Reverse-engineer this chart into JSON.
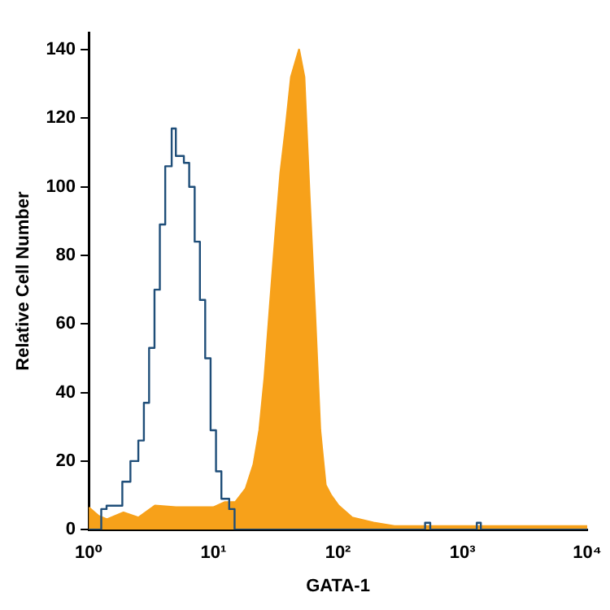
{
  "chart_data": {
    "type": "step",
    "xlabel": "GATA-1",
    "ylabel": "Relative Cell Number",
    "log": "x",
    "xlim": [
      1,
      10000
    ],
    "xticks": [
      {
        "value": 1,
        "label": "10⁰"
      },
      {
        "value": 10,
        "label": "10¹"
      },
      {
        "value": 100,
        "label": "10²"
      },
      {
        "value": 1000,
        "label": "10³"
      },
      {
        "value": 10000,
        "label": "10⁴"
      }
    ],
    "ylim": [
      0,
      145
    ],
    "yticks": [
      0,
      20,
      40,
      60,
      80,
      100,
      120,
      140
    ],
    "grid": false,
    "legend": false,
    "marker": "none",
    "series": [
      {
        "type": "area",
        "color": "#f7a11a",
        "x": [
          1,
          1.2,
          1.4,
          1.9,
          2.5,
          3.4,
          5,
          7.4,
          10,
          12.3,
          15,
          18.2,
          21,
          23.4,
          25.7,
          28.4,
          31.3,
          34.5,
          38,
          42,
          48.7,
          53.7,
          59,
          65.5,
          72,
          79.6,
          88,
          101,
          130,
          193,
          284,
          616,
          10000
        ],
        "values": [
          6.5,
          4,
          3,
          5,
          3.5,
          7,
          6.5,
          6.5,
          6.5,
          8,
          8,
          12,
          19,
          29,
          44,
          65,
          85,
          104,
          117,
          132,
          140,
          132,
          98,
          63,
          29,
          13,
          10,
          7,
          3.5,
          2,
          1,
          1,
          1
        ]
      },
      {
        "type": "step",
        "color": "#1f4e79",
        "x": [
          1,
          1.26,
          1.39,
          1.61,
          1.86,
          2.16,
          2.5,
          2.77,
          3.05,
          3.37,
          3.72,
          4.11,
          4.63,
          5,
          5.8,
          6.4,
          7.08,
          7.8,
          8.6,
          9.5,
          10.5,
          11.6,
          13.4,
          14.8,
          450,
          500,
          550,
          1200,
          1300,
          1400,
          10000
        ],
        "values": [
          0,
          6,
          7,
          7,
          14,
          20,
          26,
          37,
          53,
          70,
          89,
          106,
          117,
          109,
          107,
          100,
          84,
          67,
          50,
          29,
          17,
          9,
          6,
          0,
          0,
          2,
          0,
          0,
          2,
          0,
          0
        ]
      }
    ]
  }
}
